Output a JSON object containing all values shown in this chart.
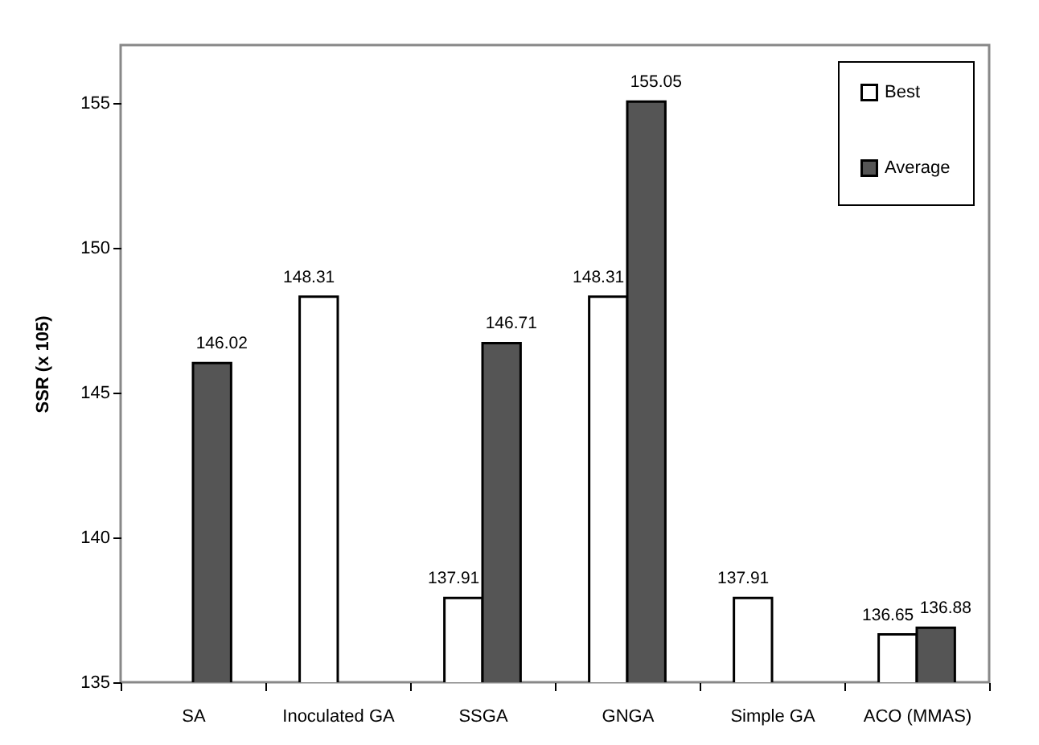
{
  "chart_data": {
    "type": "bar",
    "ylabel": "SSR (x 105)",
    "categories": [
      "SA",
      "Inoculated GA",
      "SSGA",
      "GNGA",
      "Simple GA",
      "ACO (MMAS)"
    ],
    "series": [
      {
        "name": "Best",
        "color": "#ffffff",
        "values": [
          null,
          148.31,
          137.91,
          148.31,
          137.91,
          136.65
        ]
      },
      {
        "name": "Average",
        "color": "#555555",
        "values": [
          146.02,
          null,
          146.71,
          155.05,
          null,
          136.88
        ]
      }
    ],
    "ylim": [
      135,
      157
    ],
    "yticks": [
      135,
      140,
      145,
      150,
      155
    ],
    "grid": false,
    "legend": "top right",
    "data_labels": true
  }
}
